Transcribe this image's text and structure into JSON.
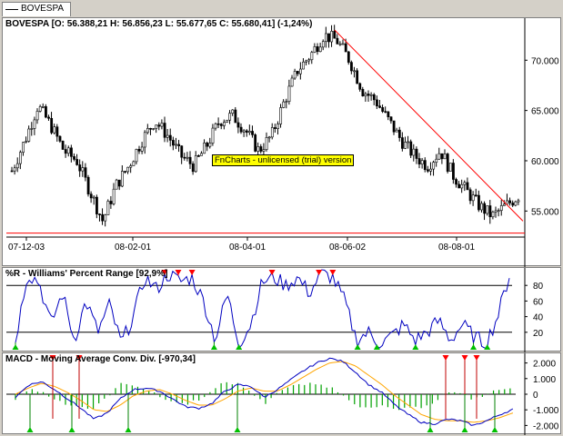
{
  "tab": {
    "label": "BOVESPA"
  },
  "price_panel": {
    "title": "BOVESPA [O: 56.388,21  H: 56.856,23  L: 55.677,65  C: 55.680,41] (-1,24%)",
    "watermark": "FnCharts - unlicensed (trial) version",
    "y_ticks": [
      "70.000",
      "65.000",
      "60.000",
      "55.000"
    ],
    "x_ticks": [
      "07-12-03",
      "08-02-01",
      "08-04-01",
      "08-06-02",
      "08-08-01"
    ]
  },
  "williams_panel": {
    "title": "%R - Williams' Percent Range [92,9%]",
    "y_ticks": [
      "80",
      "60",
      "40",
      "20"
    ]
  },
  "macd_panel": {
    "title": "MACD - Moving Average Conv. Div. [-970,34]",
    "y_ticks": [
      "2.000",
      "1.000",
      "0",
      "-1.000",
      "-2.000"
    ]
  },
  "chart_data": [
    {
      "type": "candlestick",
      "title": "BOVESPA",
      "x_tick_labels": [
        "07-12-03",
        "08-02-01",
        "08-04-01",
        "08-06-02",
        "08-08-01"
      ],
      "ylim": [
        52500,
        74000
      ],
      "approx_close_path": [
        59000,
        62000,
        65500,
        63500,
        61000,
        60000,
        57000,
        54000,
        57500,
        59500,
        62000,
        64000,
        62500,
        60500,
        59500,
        61500,
        64000,
        64500,
        63000,
        61000,
        62500,
        66000,
        69000,
        70500,
        72500,
        72000,
        70000,
        67000,
        66000,
        64000,
        62000,
        60500,
        59500,
        61000,
        58500,
        57000,
        55500,
        54500,
        55500,
        56500
      ],
      "last_candle": {
        "open": 56388.21,
        "high": 56856.23,
        "low": 55677.65,
        "close": 55680.41,
        "change_pct": -1.24
      },
      "trendline": {
        "from": 73000,
        "to": 54000,
        "color": "#ff0000"
      },
      "support_level": 52800
    },
    {
      "type": "line",
      "title": "%R - Williams' Percent Range",
      "ylim": [
        0,
        100
      ],
      "levels": [
        20,
        80
      ],
      "last_value": 92.9,
      "approx_values": [
        10,
        95,
        85,
        30,
        70,
        10,
        60,
        20,
        55,
        5,
        40,
        90,
        75,
        95,
        85,
        90,
        60,
        10,
        70,
        5,
        30,
        85,
        90,
        80,
        90,
        70,
        95,
        90,
        60,
        10,
        20,
        5,
        15,
        30,
        10,
        20,
        35,
        10,
        30,
        15,
        5,
        40,
        92.9
      ]
    },
    {
      "type": "line",
      "title": "MACD - Moving Average Conv. Div.",
      "ylim": [
        -2500,
        2500
      ],
      "last_value": -970.34,
      "approx_macd": [
        -200,
        600,
        800,
        300,
        -300,
        -900,
        -1600,
        -1200,
        -300,
        300,
        400,
        200,
        -300,
        -800,
        -900,
        -600,
        200,
        600,
        500,
        -200,
        300,
        900,
        1500,
        2000,
        2300,
        2100,
        1400,
        600,
        100,
        -700,
        -1300,
        -1800,
        -1900,
        -1600,
        -1700,
        -2000,
        -1700,
        -1300,
        -970
      ],
      "approx_signal": [
        0,
        400,
        700,
        500,
        100,
        -400,
        -1000,
        -1100,
        -700,
        -100,
        200,
        300,
        0,
        -400,
        -700,
        -700,
        -300,
        200,
        400,
        200,
        200,
        600,
        1100,
        1600,
        2000,
        2100,
        1800,
        1200,
        600,
        -100,
        -700,
        -1300,
        -1600,
        -1700,
        -1700,
        -1800,
        -1700,
        -1500,
        -1200
      ]
    }
  ]
}
